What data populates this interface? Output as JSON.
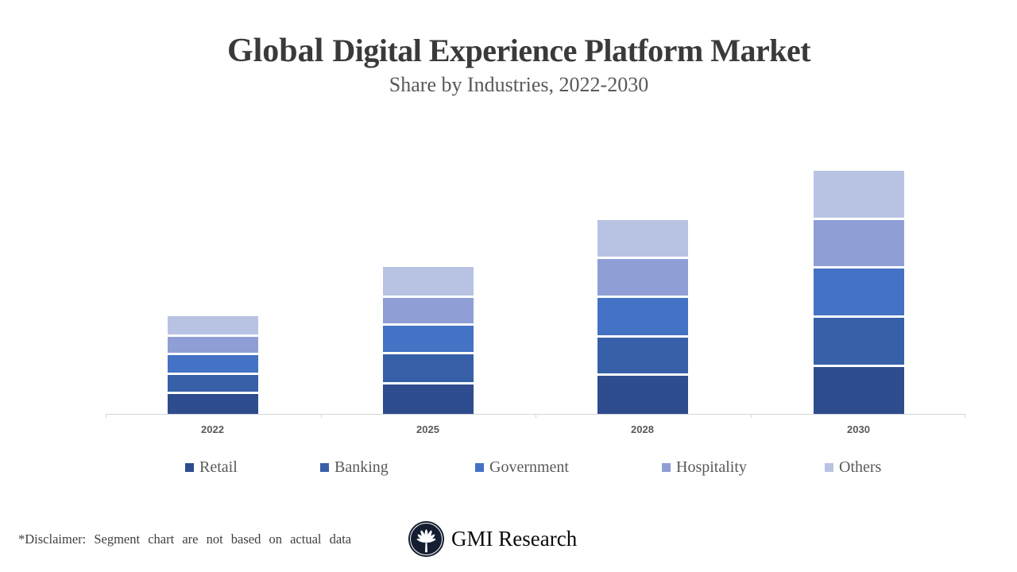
{
  "title": {
    "prefix": "Global",
    "rest": "Digital Experience Platform Market",
    "subtitle": "Share by Industries, 2022-2030"
  },
  "chart_data": {
    "type": "bar",
    "stacked": true,
    "orientation": "vertical",
    "title": "Global Digital Experience Platform Market",
    "subtitle": "Share by Industries, 2022-2030",
    "categories": [
      "2022",
      "2025",
      "2028",
      "2030"
    ],
    "series": [
      {
        "name": "Retail",
        "color": "#2E4C8E",
        "values": [
          25,
          37,
          48,
          59
        ]
      },
      {
        "name": "Banking",
        "color": "#3760A8",
        "values": [
          21,
          35,
          45,
          59
        ]
      },
      {
        "name": "Government",
        "color": "#4472C4",
        "values": [
          22,
          33,
          47,
          59
        ]
      },
      {
        "name": "Hospitality",
        "color": "#8F9FD5",
        "values": [
          20,
          32,
          46,
          58
        ]
      },
      {
        "name": "Others",
        "color": "#B8C3E3",
        "values": [
          23,
          36,
          46,
          59
        ]
      }
    ],
    "value_unit": "relative (no value axis shown)",
    "value_axis_visible": false,
    "grid": false,
    "legend_position": "bottom",
    "segment_border_color": "#FFFFFF"
  },
  "axis": {
    "line_color": "#D6D6D6",
    "labels": [
      "2022",
      "2025",
      "2028",
      "2030"
    ]
  },
  "footer": {
    "disclaimer": "*Disclaimer: Segment chart are not based on actual data",
    "brand": "GMI Research",
    "logo": "palm-fan-emblem"
  }
}
